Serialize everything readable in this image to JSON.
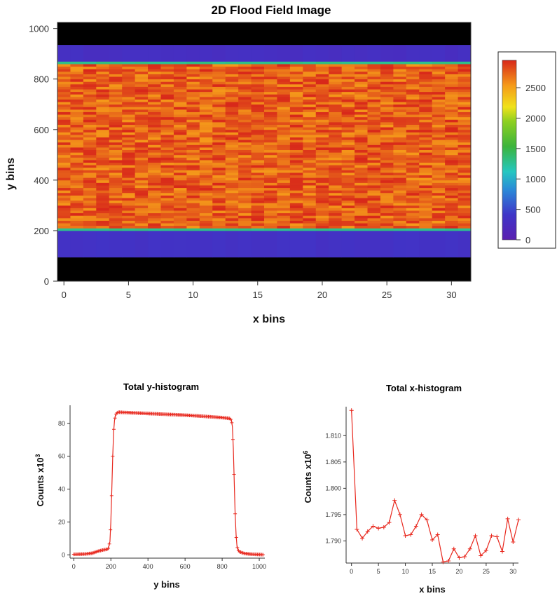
{
  "chart_data": [
    {
      "type": "heatmap",
      "title": "2D Flood Field Image",
      "xlabel": "x bins",
      "ylabel": "y bins",
      "xlim": [
        -0.5,
        31.5
      ],
      "ylim": [
        0,
        1024
      ],
      "x_ticks": [
        "0",
        "5",
        "10",
        "15",
        "20",
        "25",
        "30"
      ],
      "y_ticks": [
        "0",
        "200",
        "400",
        "600",
        "800",
        "1000"
      ],
      "colorbar": {
        "ticks": [
          "0",
          "500",
          "1000",
          "1500",
          "2000",
          "2500"
        ],
        "range": [
          0,
          2950
        ]
      },
      "bands": [
        {
          "y_from": 0,
          "y_to": 95,
          "counts": 0
        },
        {
          "y_from": 95,
          "y_to": 200,
          "counts": 350
        },
        {
          "y_from": 200,
          "y_to": 210,
          "counts": 1300
        },
        {
          "y_from": 210,
          "y_to": 860,
          "counts": 2750
        },
        {
          "y_from": 860,
          "y_to": 870,
          "counts": 1300
        },
        {
          "y_from": 870,
          "y_to": 935,
          "counts": 300
        },
        {
          "y_from": 935,
          "y_to": 1024,
          "counts": 0
        }
      ],
      "colors": {
        "background": "#000000",
        "low": "#5a1fb0",
        "high": "#e8501a"
      }
    },
    {
      "type": "line",
      "title": "Total y-histogram",
      "xlabel": "y bins",
      "ylabel": "Counts x10",
      "ylabel_sup": "3",
      "xlim": [
        -20,
        1030
      ],
      "ylim": [
        -2,
        91
      ],
      "x_ticks": [
        0,
        200,
        400,
        600,
        800,
        1000
      ],
      "y_ticks": [
        0,
        20,
        40,
        60,
        80
      ],
      "color": "#e8281e",
      "x": [
        0,
        60,
        100,
        130,
        160,
        185,
        195,
        200,
        205,
        210,
        215,
        220,
        225,
        230,
        235,
        240,
        260,
        300,
        400,
        500,
        600,
        700,
        800,
        840,
        850,
        855,
        860,
        865,
        870,
        875,
        880,
        890,
        920,
        960,
        1000,
        1020
      ],
      "values": [
        0.3,
        0.5,
        1.0,
        2.2,
        3.0,
        3.5,
        8,
        20,
        40,
        60,
        75,
        82,
        85,
        86,
        86.5,
        86.8,
        86.7,
        86.5,
        86,
        85.5,
        85,
        84.3,
        83.5,
        83,
        82,
        78,
        65,
        45,
        25,
        12,
        5,
        2,
        0.8,
        0.4,
        0.2,
        0.1
      ]
    },
    {
      "type": "line",
      "title": "Total x-histogram",
      "xlabel": "x bins",
      "ylabel": "Counts x10",
      "ylabel_sup": "6",
      "xlim": [
        -1,
        31
      ],
      "ylim": [
        1.7858,
        1.8155
      ],
      "x_ticks": [
        0,
        5,
        10,
        15,
        20,
        25,
        30
      ],
      "y_ticks": [
        "1.790",
        "1.795",
        "1.800",
        "1.805",
        "1.810"
      ],
      "color": "#e8281e",
      "x": [
        0,
        1,
        2,
        3,
        4,
        5,
        6,
        7,
        8,
        9,
        10,
        11,
        12,
        13,
        14,
        15,
        16,
        17,
        18,
        19,
        20,
        21,
        22,
        23,
        24,
        25,
        26,
        27,
        28,
        29,
        30,
        31
      ],
      "values": [
        1.8148,
        1.7922,
        1.7905,
        1.7918,
        1.7928,
        1.7924,
        1.7926,
        1.7935,
        1.7977,
        1.795,
        1.791,
        1.7912,
        1.7928,
        1.795,
        1.794,
        1.7902,
        1.7912,
        1.786,
        1.7862,
        1.7885,
        1.7868,
        1.787,
        1.7885,
        1.791,
        1.7872,
        1.7882,
        1.791,
        1.7908,
        1.788,
        1.7942,
        1.7898,
        1.794
      ]
    }
  ]
}
